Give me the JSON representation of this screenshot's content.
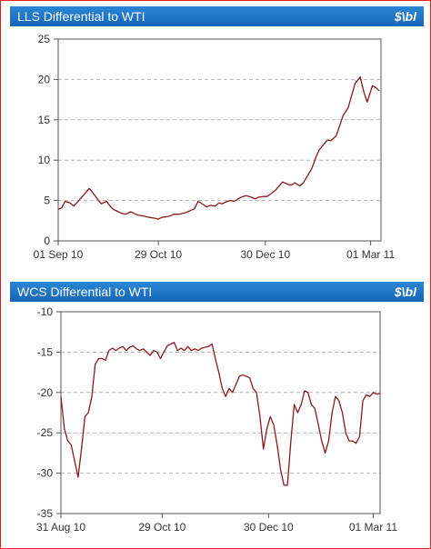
{
  "chart_data": [
    {
      "type": "line",
      "title": "LLS Differential to WTI",
      "unit": "$\\bl",
      "ylim": [
        0,
        25
      ],
      "yticks": [
        "0",
        "5",
        "10",
        "15",
        "20",
        "25"
      ],
      "xlim": [
        "2010-09-01",
        "2011-03-07"
      ],
      "xticks": [
        {
          "date": "2010-09-01",
          "label": "01 Sep 10"
        },
        {
          "date": "2010-10-29",
          "label": "29 Oct 10"
        },
        {
          "date": "2010-12-30",
          "label": "30 Dec 10"
        },
        {
          "date": "2011-03-01",
          "label": "01 Mar 11"
        }
      ],
      "grid": "horizontal-dashed",
      "color": "#8b1a1a",
      "series": [
        {
          "x": [
            "2010-09-01",
            "2010-09-03",
            "2010-09-05",
            "2010-09-08",
            "2010-09-10",
            "2010-09-12",
            "2010-09-15",
            "2010-09-17",
            "2010-09-19",
            "2010-09-22",
            "2010-09-24",
            "2010-09-26",
            "2010-09-29",
            "2010-10-01",
            "2010-10-03",
            "2010-10-06",
            "2010-10-08",
            "2010-10-10",
            "2010-10-13",
            "2010-10-15",
            "2010-10-17",
            "2010-10-20",
            "2010-10-22",
            "2010-10-24",
            "2010-10-27",
            "2010-10-29",
            "2010-10-31",
            "2010-11-03",
            "2010-11-05",
            "2010-11-07",
            "2010-11-10",
            "2010-11-12",
            "2010-11-14",
            "2010-11-17",
            "2010-11-19",
            "2010-11-21",
            "2010-11-24",
            "2010-11-26",
            "2010-11-28",
            "2010-12-01",
            "2010-12-03",
            "2010-12-05",
            "2010-12-08",
            "2010-12-10",
            "2010-12-12",
            "2010-12-15",
            "2010-12-17",
            "2010-12-19",
            "2010-12-22",
            "2010-12-24",
            "2010-12-26",
            "2010-12-29",
            "2010-12-31",
            "2011-01-02",
            "2011-01-05",
            "2011-01-07",
            "2011-01-09",
            "2011-01-12",
            "2011-01-14",
            "2011-01-16",
            "2011-01-19",
            "2011-01-21",
            "2011-01-23",
            "2011-01-26",
            "2011-01-28",
            "2011-01-30",
            "2011-02-02",
            "2011-02-04",
            "2011-02-06",
            "2011-02-09",
            "2011-02-11",
            "2011-02-13",
            "2011-02-16",
            "2011-02-18",
            "2011-02-20",
            "2011-02-23",
            "2011-02-25",
            "2011-02-27",
            "2011-03-02",
            "2011-03-04",
            "2011-03-06"
          ],
          "values": [
            3.9,
            4.1,
            4.9,
            4.7,
            4.3,
            4.8,
            5.5,
            6.0,
            6.5,
            5.7,
            5.1,
            4.6,
            4.9,
            4.3,
            3.9,
            3.6,
            3.4,
            3.3,
            3.6,
            3.4,
            3.2,
            3.1,
            3.0,
            2.9,
            2.8,
            2.7,
            2.9,
            3.0,
            3.1,
            3.3,
            3.3,
            3.4,
            3.5,
            3.8,
            4.0,
            4.9,
            4.5,
            4.2,
            4.4,
            4.3,
            4.7,
            4.6,
            4.9,
            5.0,
            4.9,
            5.3,
            5.5,
            5.6,
            5.4,
            5.2,
            5.4,
            5.5,
            5.5,
            5.8,
            6.3,
            6.8,
            7.3,
            7.0,
            6.9,
            7.2,
            6.8,
            7.2,
            7.9,
            9.0,
            10.2,
            11.2,
            12.0,
            12.5,
            12.4,
            13.0,
            14.2,
            15.5,
            16.5,
            18.0,
            19.5,
            20.3,
            18.5,
            17.2,
            19.2,
            19.0,
            18.6
          ]
        }
      ]
    },
    {
      "type": "line",
      "title": "WCS Differential to WTI",
      "unit": "$\\bl",
      "ylim": [
        -35,
        -10
      ],
      "yticks": [
        "-35",
        "-30",
        "-25",
        "-20",
        "-15",
        "-10"
      ],
      "xlim": [
        "2010-08-31",
        "2011-03-05"
      ],
      "xticks": [
        {
          "date": "2010-08-31",
          "label": "31 Aug 10"
        },
        {
          "date": "2010-10-29",
          "label": "29 Oct 10"
        },
        {
          "date": "2010-12-30",
          "label": "30 Dec 10"
        },
        {
          "date": "2011-03-01",
          "label": "01 Mar 11"
        }
      ],
      "grid": "horizontal-dashed",
      "color": "#8b1a1a",
      "series": [
        {
          "x": [
            "2010-08-31",
            "2010-09-02",
            "2010-09-04",
            "2010-09-06",
            "2010-09-08",
            "2010-09-10",
            "2010-09-12",
            "2010-09-14",
            "2010-09-16",
            "2010-09-18",
            "2010-09-20",
            "2010-09-22",
            "2010-09-24",
            "2010-09-26",
            "2010-09-28",
            "2010-09-30",
            "2010-10-02",
            "2010-10-04",
            "2010-10-06",
            "2010-10-08",
            "2010-10-10",
            "2010-10-12",
            "2010-10-14",
            "2010-10-16",
            "2010-10-18",
            "2010-10-20",
            "2010-10-22",
            "2010-10-24",
            "2010-10-26",
            "2010-10-28",
            "2010-10-30",
            "2010-11-01",
            "2010-11-03",
            "2010-11-05",
            "2010-11-07",
            "2010-11-09",
            "2010-11-11",
            "2010-11-13",
            "2010-11-15",
            "2010-11-17",
            "2010-11-19",
            "2010-11-21",
            "2010-11-23",
            "2010-11-25",
            "2010-11-27",
            "2010-11-29",
            "2010-12-01",
            "2010-12-03",
            "2010-12-05",
            "2010-12-07",
            "2010-12-09",
            "2010-12-11",
            "2010-12-13",
            "2010-12-15",
            "2010-12-17",
            "2010-12-19",
            "2010-12-21",
            "2010-12-23",
            "2010-12-25",
            "2010-12-27",
            "2010-12-29",
            "2010-12-31",
            "2011-01-02",
            "2011-01-04",
            "2011-01-06",
            "2011-01-08",
            "2011-01-10",
            "2011-01-12",
            "2011-01-14",
            "2011-01-16",
            "2011-01-18",
            "2011-01-20",
            "2011-01-22",
            "2011-01-24",
            "2011-01-26",
            "2011-01-28",
            "2011-01-30",
            "2011-02-01",
            "2011-02-03",
            "2011-02-05",
            "2011-02-07",
            "2011-02-09",
            "2011-02-11",
            "2011-02-13",
            "2011-02-15",
            "2011-02-17",
            "2011-02-19",
            "2011-02-21",
            "2011-02-23",
            "2011-02-25",
            "2011-02-27",
            "2011-03-01",
            "2011-03-03",
            "2011-03-05"
          ],
          "values": [
            -20.5,
            -24.5,
            -26.0,
            -26.5,
            -28.5,
            -30.5,
            -27.0,
            -23.0,
            -22.5,
            -20.5,
            -16.5,
            -15.8,
            -15.8,
            -16.0,
            -14.8,
            -14.5,
            -14.8,
            -14.5,
            -14.3,
            -14.8,
            -14.4,
            -14.2,
            -14.6,
            -14.8,
            -14.6,
            -15.0,
            -15.4,
            -14.8,
            -15.0,
            -15.8,
            -15.0,
            -14.2,
            -14.0,
            -13.8,
            -14.8,
            -14.5,
            -14.8,
            -14.3,
            -14.8,
            -14.6,
            -14.8,
            -14.5,
            -14.4,
            -14.3,
            -14.0,
            -15.8,
            -17.5,
            -19.5,
            -20.5,
            -19.5,
            -20.0,
            -19.0,
            -18.0,
            -17.8,
            -18.0,
            -18.2,
            -19.5,
            -20.0,
            -23.0,
            -27.0,
            -24.5,
            -23.0,
            -24.0,
            -26.5,
            -29.5,
            -31.5,
            -31.5,
            -26.0,
            -21.5,
            -22.5,
            -21.5,
            -19.8,
            -20.0,
            -21.5,
            -22.0,
            -24.0,
            -26.0,
            -27.5,
            -26.0,
            -22.5,
            -20.5,
            -21.0,
            -22.5,
            -25.0,
            -26.0,
            -26.0,
            -26.3,
            -25.5,
            -21.0,
            -20.3,
            -20.5,
            -20.0,
            -20.2,
            -20.1
          ]
        }
      ]
    }
  ]
}
